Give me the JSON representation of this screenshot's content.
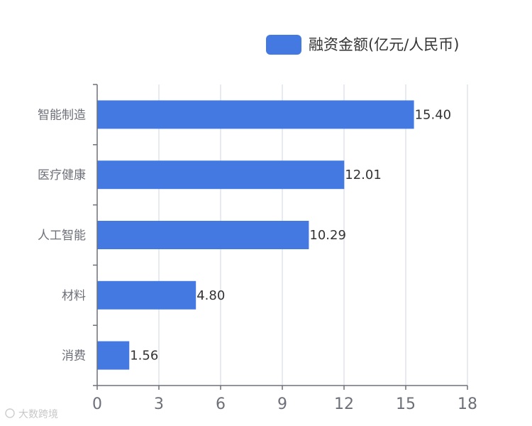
{
  "chart_data": {
    "type": "bar",
    "orientation": "horizontal",
    "categories": [
      "智能制造",
      "医疗健康",
      "人工智能",
      "材料",
      "消费"
    ],
    "series": [
      {
        "name": "融资金额(亿元/人民币)",
        "values": [
          15.4,
          12.01,
          10.29,
          4.8,
          1.56
        ],
        "value_labels": [
          "15.40",
          "12.01",
          "10.29",
          "4.80",
          "1.56"
        ]
      }
    ],
    "xlim": [
      0,
      18
    ],
    "xticks": [
      0,
      3,
      6,
      9,
      12,
      15,
      18
    ],
    "grid": true,
    "legend_position": "top-right",
    "colors": {
      "bar": "#4479e2",
      "grid": "#dfe3ec",
      "axis": "#6e7079"
    }
  },
  "watermark_text": "大数跨境"
}
